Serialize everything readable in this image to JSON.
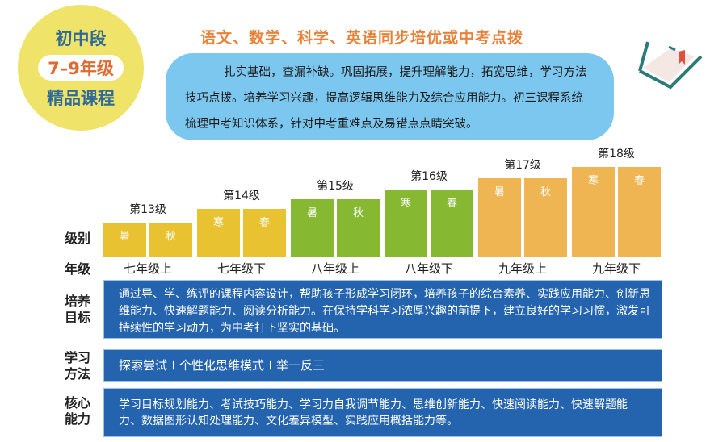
{
  "badge": {
    "line1": "初中段",
    "line2": "7–9年级",
    "line3": "精品课程"
  },
  "headline": "语文、数学、科学、英语同步培优或中考点拨",
  "intro": "扎实基础，查漏补缺。巩固拓展，提升理解能力，拓宽思维，学习方法技巧点拨。培养学习兴趣，提高逻辑思维能力及综合应用能力。初三课程系统梳理中考知识体系，针对中考重难点及易错点点睛突破。",
  "icon": "open-book-icon",
  "labels": {
    "level": "级别",
    "grade": "年级",
    "goal": "培养目标",
    "method": "学习方法",
    "core": "核心能力"
  },
  "colors": {
    "yellow": "#e9c232",
    "green": "#86b832",
    "orange": "#eeb552",
    "blue": "#2463ae"
  },
  "levels": [
    {
      "name": "第13级",
      "grade": "七年级上",
      "terms": [
        "暑",
        "秋"
      ],
      "rank": 1,
      "color": "yellow"
    },
    {
      "name": "第14级",
      "grade": "七年级下",
      "terms": [
        "寒",
        "春"
      ],
      "rank": 2,
      "color": "yellow"
    },
    {
      "name": "第15级",
      "grade": "八年级上",
      "terms": [
        "暑",
        "秋"
      ],
      "rank": 3,
      "color": "green"
    },
    {
      "name": "第16级",
      "grade": "八年级下",
      "terms": [
        "寒",
        "春"
      ],
      "rank": 4,
      "color": "green"
    },
    {
      "name": "第17级",
      "grade": "九年级上",
      "terms": [
        "暑",
        "秋"
      ],
      "rank": 5,
      "color": "orange"
    },
    {
      "name": "第18级",
      "grade": "九年级下",
      "terms": [
        "寒",
        "春"
      ],
      "rank": 6,
      "color": "orange"
    }
  ],
  "goal": "通过导、学、练评的课程内容设计，帮助孩子形成学习闭环，培养孩子的综合素养、实践应用能力、创新思维能力、快速解题能力、阅读分析能力。在保持学科学习浓厚兴趣的前提下，建立良好的学习习惯，激发可持续性的学习动力，为中考打下坚实的基础。",
  "method": "探索尝试＋个性化思维模式＋举一反三",
  "core": "学习目标规划能力、考试技巧能力、学习力自我调节能力、思维创新能力、快速阅读能力、快速解题能力、数据图形认知处理能力、文化差异模型、实践应用概括能力等。"
}
